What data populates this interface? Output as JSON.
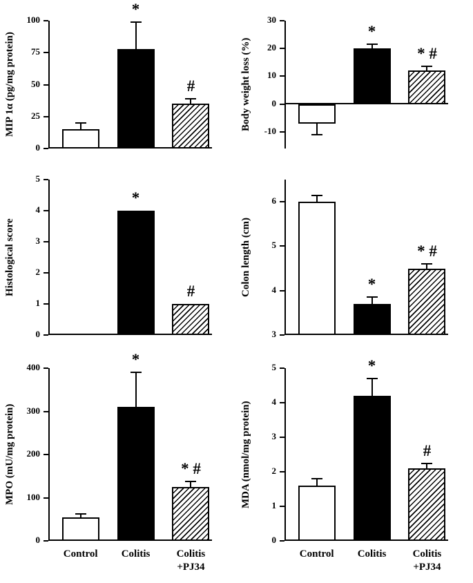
{
  "figure": {
    "description": "Six-panel bar figure comparing Control, Colitis and Colitis+PJ34 groups",
    "background": "#ffffff"
  },
  "colors": {
    "axis": "#000000",
    "bar_open_fill": "#ffffff",
    "bar_solid_fill": "#000000",
    "bar_hatch": "#000000"
  },
  "categories": [
    "Control",
    "Colitis",
    "Colitis\n+PJ34"
  ],
  "bar_styles": [
    "open",
    "solid",
    "hatched"
  ],
  "chart_data": [
    {
      "type": "bar",
      "ylabel": "MIP 1α (pg/mg protein)",
      "ylim": [
        0,
        100
      ],
      "yticks": [
        0,
        25,
        50,
        75,
        100
      ],
      "categories": [
        "Control",
        "Colitis",
        "Colitis +PJ34"
      ],
      "values": [
        15,
        78,
        35
      ],
      "errors": [
        5,
        21,
        4
      ],
      "annotations": [
        "",
        "*",
        "#"
      ],
      "show_x_labels": false,
      "grid": false,
      "legend": false
    },
    {
      "type": "bar",
      "ylabel": "Body weight loss (%)",
      "ylim": [
        -16,
        30
      ],
      "yticks": [
        -10,
        0,
        10,
        20,
        30
      ],
      "categories": [
        "Control",
        "Colitis",
        "Colitis +PJ34"
      ],
      "values": [
        -7,
        20,
        12
      ],
      "errors": [
        4,
        1.5,
        1.5
      ],
      "annotations": [
        "",
        "*",
        "* #"
      ],
      "show_x_labels": false,
      "grid": false,
      "legend": false
    },
    {
      "type": "bar",
      "ylabel": "Histological score",
      "ylim": [
        0,
        5
      ],
      "yticks": [
        0,
        1,
        2,
        3,
        4,
        5
      ],
      "categories": [
        "Control",
        "Colitis",
        "Colitis +PJ34"
      ],
      "values": [
        0,
        4,
        1
      ],
      "errors": [
        0,
        0,
        0
      ],
      "annotations": [
        "",
        "*",
        "#"
      ],
      "show_x_labels": false,
      "grid": false,
      "legend": false
    },
    {
      "type": "bar",
      "ylabel": "Colon length (cm)",
      "ylim": [
        3,
        6.5
      ],
      "yticks": [
        3,
        4,
        5,
        6
      ],
      "categories": [
        "Control",
        "Colitis",
        "Colitis +PJ34"
      ],
      "values": [
        6,
        3.7,
        4.5
      ],
      "errors": [
        0.15,
        0.15,
        0.1
      ],
      "annotations": [
        "",
        "*",
        "* #"
      ],
      "show_x_labels": false,
      "grid": false,
      "legend": false
    },
    {
      "type": "bar",
      "ylabel": "MPO (mU/mg protein)",
      "ylim": [
        0,
        400
      ],
      "yticks": [
        0,
        100,
        200,
        300,
        400
      ],
      "categories": [
        "Control",
        "Colitis",
        "Colitis +PJ34"
      ],
      "values": [
        55,
        310,
        125
      ],
      "errors": [
        8,
        80,
        12
      ],
      "annotations": [
        "",
        "*",
        "* #"
      ],
      "show_x_labels": true,
      "grid": false,
      "legend": false
    },
    {
      "type": "bar",
      "ylabel": "MDA (nmol/mg protein)",
      "ylim": [
        0,
        5
      ],
      "yticks": [
        0,
        1,
        2,
        3,
        4,
        5
      ],
      "categories": [
        "Control",
        "Colitis",
        "Colitis +PJ34"
      ],
      "values": [
        1.6,
        4.2,
        2.1
      ],
      "errors": [
        0.2,
        0.5,
        0.15
      ],
      "annotations": [
        "",
        "*",
        "#"
      ],
      "show_x_labels": true,
      "grid": false,
      "legend": false
    }
  ]
}
